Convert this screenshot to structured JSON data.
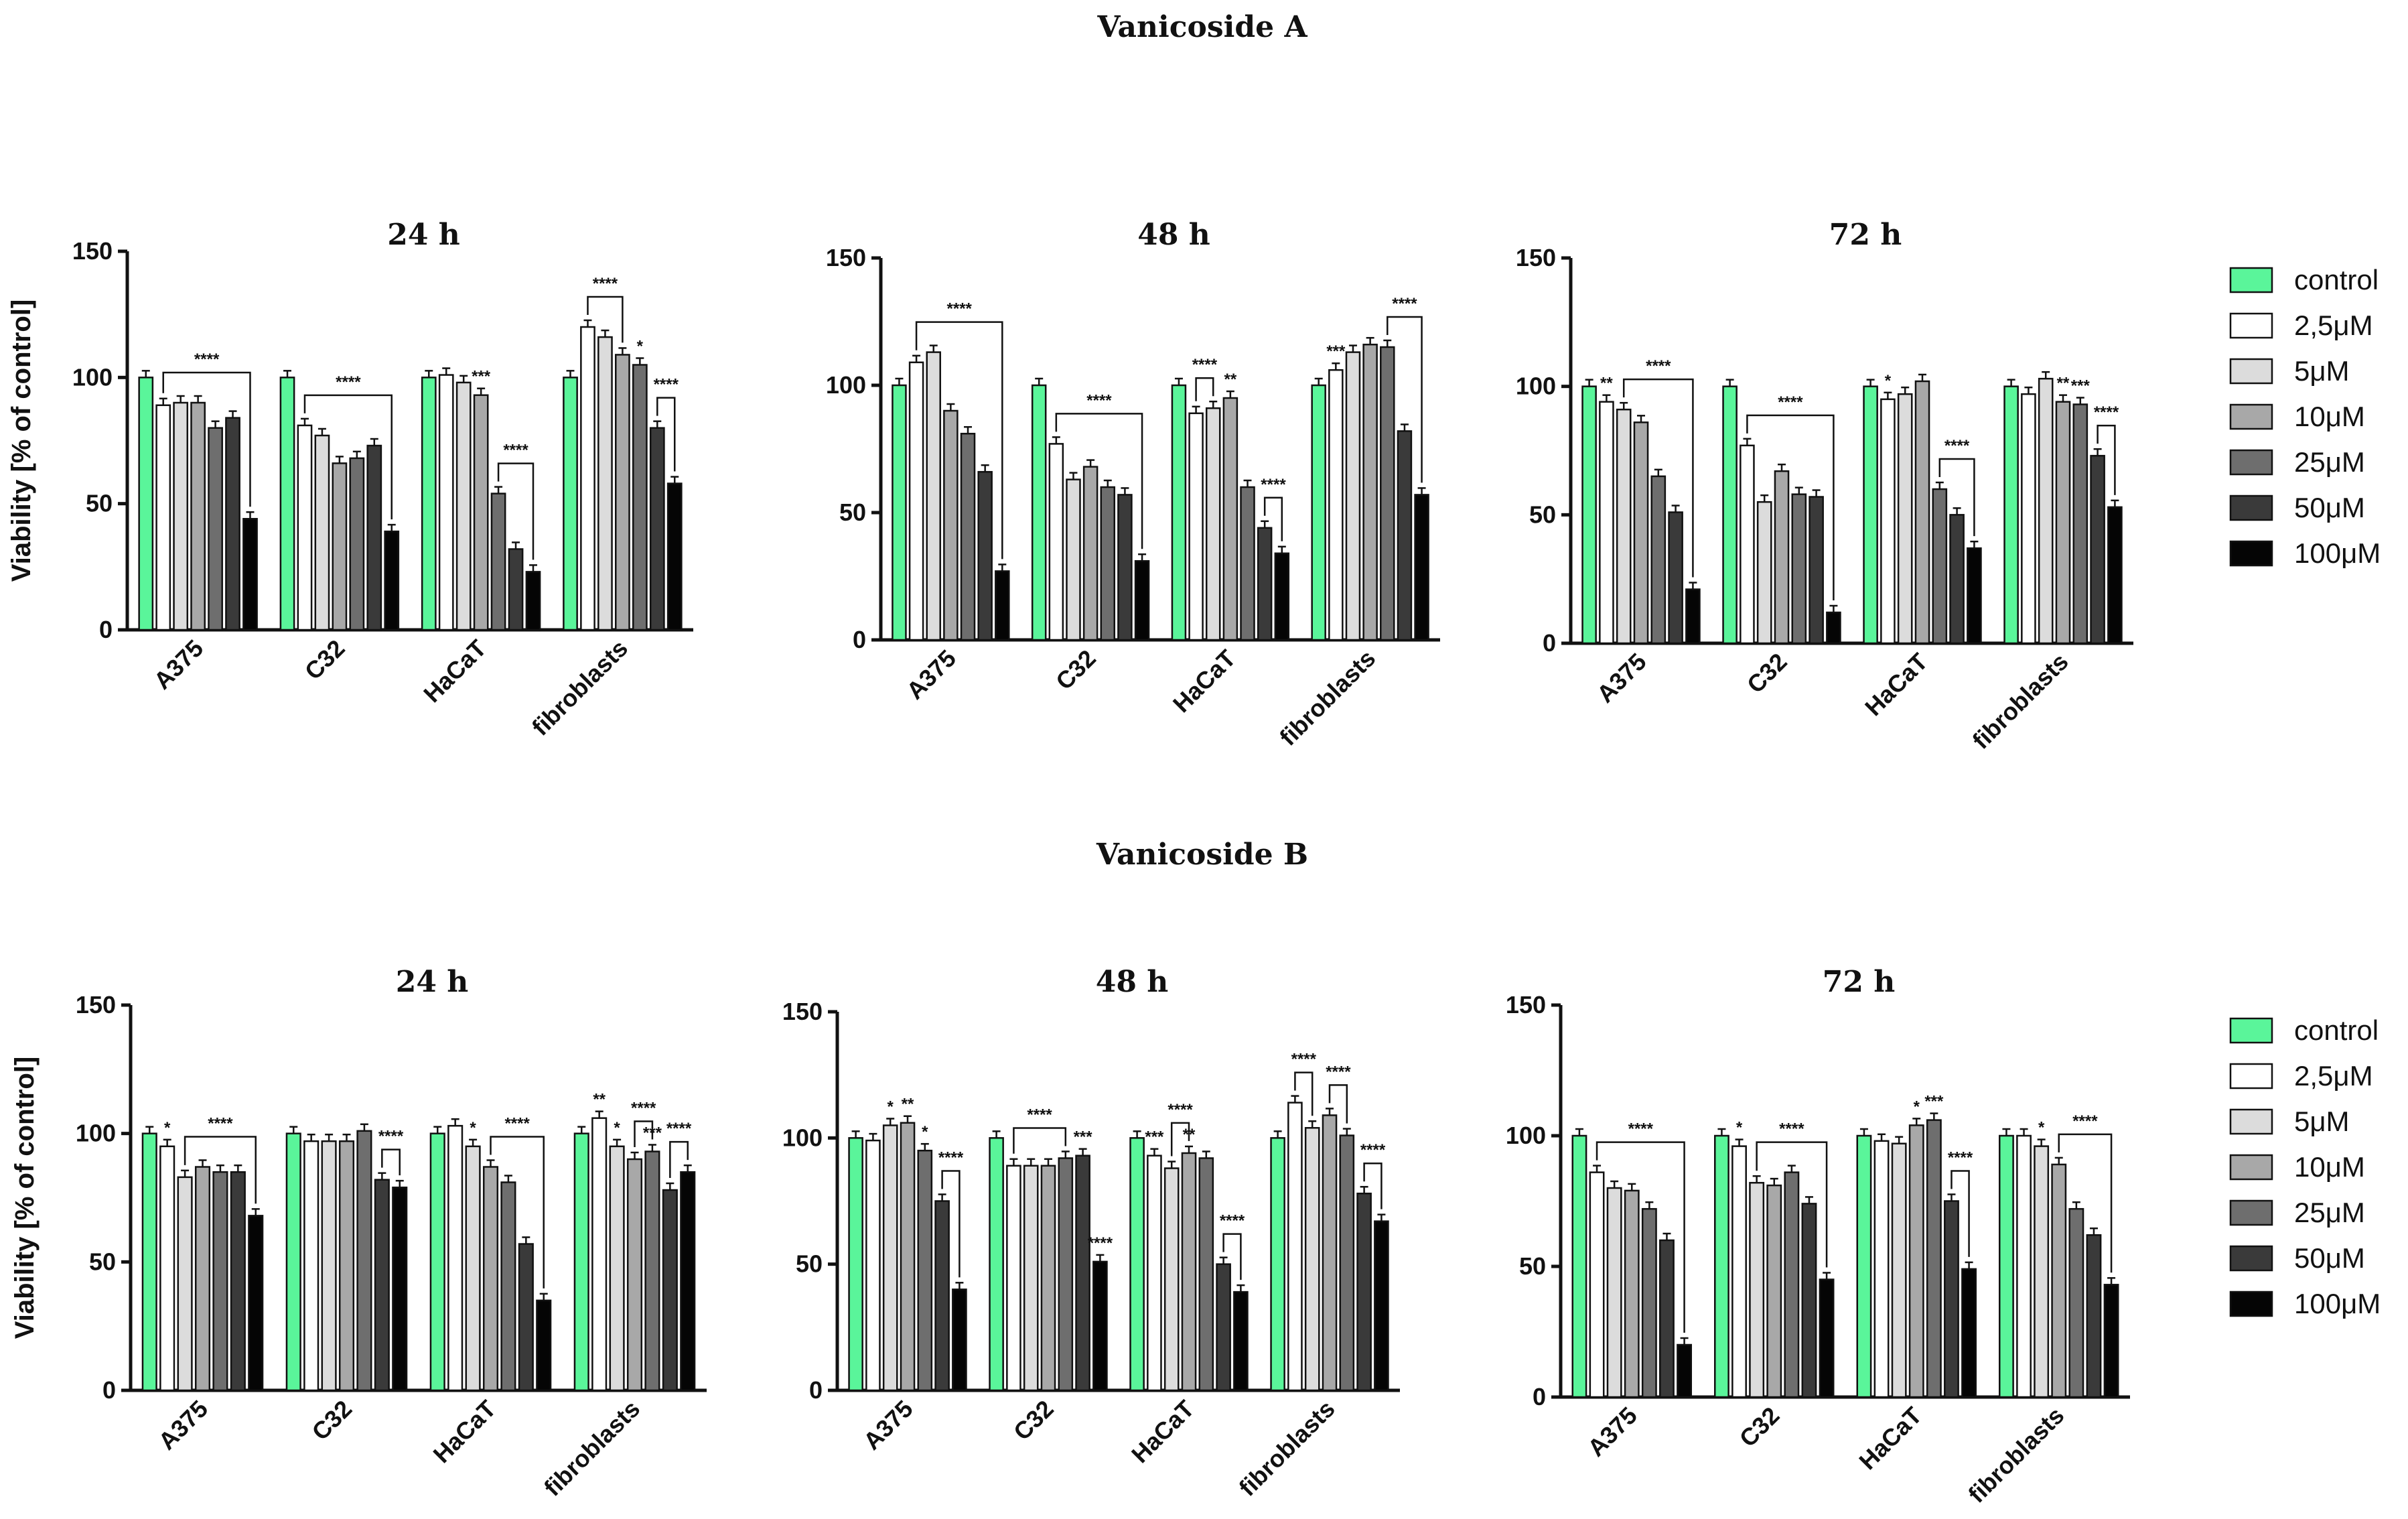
{
  "figure": {
    "section_titles": [
      "Vanicoside A",
      "Vanicoside B"
    ],
    "legend": {
      "labels": [
        "control",
        "2,5μM",
        "5μM",
        "10μM",
        "25μM",
        "50μM",
        "100μM"
      ],
      "colors": [
        "#5af59a",
        "#ffffff",
        "#dcdcdc",
        "#a8a8a8",
        "#6e6e6e",
        "#3a3a3a",
        "#050505"
      ]
    }
  },
  "chart_data": [
    {
      "type": "bar",
      "section": "Vanicoside A",
      "title": "24 h",
      "ylabel": "Viability [% of control]",
      "ylim": [
        0,
        150
      ],
      "yticks": [
        0,
        50,
        100,
        150
      ],
      "categories": [
        "A375",
        "C32",
        "HaCaT",
        "fibroblasts"
      ],
      "series": [
        {
          "name": "control",
          "values": [
            100,
            100,
            100,
            100
          ]
        },
        {
          "name": "2,5μM",
          "values": [
            89,
            81,
            101,
            120
          ]
        },
        {
          "name": "5μM",
          "values": [
            90,
            77,
            98,
            116
          ]
        },
        {
          "name": "10μM",
          "values": [
            90,
            66,
            93,
            109
          ]
        },
        {
          "name": "25μM",
          "values": [
            80,
            68,
            54,
            105
          ]
        },
        {
          "name": "50μM",
          "values": [
            84,
            73,
            32,
            80
          ]
        },
        {
          "name": "100μM",
          "values": [
            44,
            39,
            23,
            58
          ]
        }
      ],
      "annotations": [
        {
          "cat": 0,
          "type": "bracket",
          "from": 1,
          "to": 6,
          "label": "****"
        },
        {
          "cat": 1,
          "type": "bracket",
          "from": 1,
          "to": 6,
          "label": "****"
        },
        {
          "cat": 2,
          "type": "star",
          "at": 3,
          "label": "***"
        },
        {
          "cat": 2,
          "type": "bracket",
          "from": 4,
          "to": 6,
          "label": "****"
        },
        {
          "cat": 3,
          "type": "bracket",
          "from": 1,
          "to": 3,
          "label": "****"
        },
        {
          "cat": 3,
          "type": "star",
          "at": 4,
          "label": "*"
        },
        {
          "cat": 3,
          "type": "bracket",
          "from": 5,
          "to": 6,
          "label": "****"
        }
      ]
    },
    {
      "type": "bar",
      "section": "Vanicoside A",
      "title": "48 h",
      "ylim": [
        0,
        150
      ],
      "yticks": [
        0,
        50,
        100,
        150
      ],
      "categories": [
        "A375",
        "C32",
        "HaCaT",
        "fibroblasts"
      ],
      "series": [
        {
          "name": "control",
          "values": [
            100,
            100,
            100,
            100
          ]
        },
        {
          "name": "2,5μM",
          "values": [
            109,
            77,
            89,
            106
          ]
        },
        {
          "name": "5μM",
          "values": [
            113,
            63,
            91,
            113
          ]
        },
        {
          "name": "10μM",
          "values": [
            90,
            68,
            95,
            116
          ]
        },
        {
          "name": "25μM",
          "values": [
            81,
            60,
            60,
            115
          ]
        },
        {
          "name": "50μM",
          "values": [
            66,
            57,
            44,
            82
          ]
        },
        {
          "name": "100μM",
          "values": [
            27,
            31,
            34,
            57
          ]
        }
      ],
      "annotations": [
        {
          "cat": 0,
          "type": "bracket",
          "from": 1,
          "to": 6,
          "label": "****"
        },
        {
          "cat": 1,
          "type": "bracket",
          "from": 1,
          "to": 6,
          "label": "****"
        },
        {
          "cat": 2,
          "type": "bracket",
          "from": 1,
          "to": 2,
          "label": "****"
        },
        {
          "cat": 2,
          "type": "star",
          "at": 3,
          "label": "**"
        },
        {
          "cat": 2,
          "type": "bracket",
          "from": 5,
          "to": 6,
          "label": "****"
        },
        {
          "cat": 3,
          "type": "star",
          "at": 1,
          "label": "***"
        },
        {
          "cat": 3,
          "type": "bracket",
          "from": 4,
          "to": 6,
          "label": "****"
        }
      ]
    },
    {
      "type": "bar",
      "section": "Vanicoside A",
      "title": "72 h",
      "ylim": [
        0,
        150
      ],
      "yticks": [
        0,
        50,
        100,
        150
      ],
      "categories": [
        "A375",
        "C32",
        "HaCaT",
        "fibroblasts"
      ],
      "series": [
        {
          "name": "control",
          "values": [
            100,
            100,
            100,
            100
          ]
        },
        {
          "name": "2,5μM",
          "values": [
            94,
            77,
            95,
            97
          ]
        },
        {
          "name": "5μM",
          "values": [
            91,
            55,
            97,
            103
          ]
        },
        {
          "name": "10μM",
          "values": [
            86,
            67,
            102,
            94
          ]
        },
        {
          "name": "25μM",
          "values": [
            65,
            58,
            60,
            93
          ]
        },
        {
          "name": "50μM",
          "values": [
            51,
            57,
            50,
            73
          ]
        },
        {
          "name": "100μM",
          "values": [
            21,
            12,
            37,
            53
          ]
        }
      ],
      "annotations": [
        {
          "cat": 0,
          "type": "star",
          "at": 1,
          "label": "**"
        },
        {
          "cat": 0,
          "type": "bracket",
          "from": 2,
          "to": 6,
          "label": "****"
        },
        {
          "cat": 1,
          "type": "bracket",
          "from": 1,
          "to": 6,
          "label": "****"
        },
        {
          "cat": 2,
          "type": "star",
          "at": 1,
          "label": "*"
        },
        {
          "cat": 2,
          "type": "bracket",
          "from": 4,
          "to": 6,
          "label": "****"
        },
        {
          "cat": 3,
          "type": "star",
          "at": 3,
          "label": "**"
        },
        {
          "cat": 3,
          "type": "star",
          "at": 4,
          "label": "***"
        },
        {
          "cat": 3,
          "type": "bracket",
          "from": 5,
          "to": 6,
          "label": "****"
        }
      ]
    },
    {
      "type": "bar",
      "section": "Vanicoside B",
      "title": "24 h",
      "ylabel": "Viability [% of control]",
      "ylim": [
        0,
        150
      ],
      "yticks": [
        0,
        50,
        100,
        150
      ],
      "categories": [
        "A375",
        "C32",
        "HaCaT",
        "fibroblasts"
      ],
      "series": [
        {
          "name": "control",
          "values": [
            100,
            100,
            100,
            100
          ]
        },
        {
          "name": "2,5μM",
          "values": [
            95,
            97,
            103,
            106
          ]
        },
        {
          "name": "5μM",
          "values": [
            83,
            97,
            95,
            95
          ]
        },
        {
          "name": "10μM",
          "values": [
            87,
            97,
            87,
            90
          ]
        },
        {
          "name": "25μM",
          "values": [
            85,
            101,
            81,
            93
          ]
        },
        {
          "name": "50μM",
          "values": [
            85,
            82,
            57,
            78
          ]
        },
        {
          "name": "100μM",
          "values": [
            68,
            79,
            35,
            85
          ]
        }
      ],
      "annotations": [
        {
          "cat": 0,
          "type": "star",
          "at": 1,
          "label": "*"
        },
        {
          "cat": 0,
          "type": "bracket",
          "from": 2,
          "to": 6,
          "label": "****"
        },
        {
          "cat": 1,
          "type": "bracket",
          "from": 5,
          "to": 6,
          "label": "****"
        },
        {
          "cat": 2,
          "type": "star",
          "at": 2,
          "label": "*"
        },
        {
          "cat": 2,
          "type": "bracket",
          "from": 3,
          "to": 6,
          "label": "****"
        },
        {
          "cat": 3,
          "type": "star",
          "at": 1,
          "label": "**"
        },
        {
          "cat": 3,
          "type": "star",
          "at": 2,
          "label": "*"
        },
        {
          "cat": 3,
          "type": "bracket",
          "from": 3,
          "to": 4,
          "label": "****"
        },
        {
          "cat": 3,
          "type": "star",
          "at": 4,
          "label": "***"
        },
        {
          "cat": 3,
          "type": "bracket",
          "from": 5,
          "to": 6,
          "label": "****"
        }
      ]
    },
    {
      "type": "bar",
      "section": "Vanicoside B",
      "title": "48 h",
      "ylim": [
        0,
        150
      ],
      "yticks": [
        0,
        50,
        100,
        150
      ],
      "categories": [
        "A375",
        "C32",
        "HaCaT",
        "fibroblasts"
      ],
      "series": [
        {
          "name": "control",
          "values": [
            100,
            100,
            100,
            100
          ]
        },
        {
          "name": "2,5μM",
          "values": [
            99,
            89,
            93,
            114
          ]
        },
        {
          "name": "5μM",
          "values": [
            105,
            89,
            88,
            104
          ]
        },
        {
          "name": "10μM",
          "values": [
            106,
            89,
            94,
            109
          ]
        },
        {
          "name": "25μM",
          "values": [
            95,
            92,
            92,
            101
          ]
        },
        {
          "name": "50μM",
          "values": [
            75,
            93,
            50,
            78
          ]
        },
        {
          "name": "100μM",
          "values": [
            40,
            51,
            39,
            67
          ]
        }
      ],
      "annotations": [
        {
          "cat": 0,
          "type": "star",
          "at": 2,
          "label": "*"
        },
        {
          "cat": 0,
          "type": "star",
          "at": 3,
          "label": "**"
        },
        {
          "cat": 0,
          "type": "star",
          "at": 4,
          "label": "*"
        },
        {
          "cat": 0,
          "type": "bracket",
          "from": 5,
          "to": 6,
          "label": "****"
        },
        {
          "cat": 1,
          "type": "bracket",
          "from": 1,
          "to": 4,
          "label": "****"
        },
        {
          "cat": 1,
          "type": "star",
          "at": 5,
          "label": "***"
        },
        {
          "cat": 1,
          "type": "star",
          "at": 6,
          "label": "****"
        },
        {
          "cat": 2,
          "type": "star",
          "at": 1,
          "label": "***"
        },
        {
          "cat": 2,
          "type": "bracket",
          "from": 2,
          "to": 3,
          "label": "****"
        },
        {
          "cat": 2,
          "type": "star",
          "at": 3,
          "label": "**"
        },
        {
          "cat": 2,
          "type": "bracket",
          "from": 5,
          "to": 6,
          "label": "****"
        },
        {
          "cat": 3,
          "type": "bracket",
          "from": 1,
          "to": 2,
          "label": "****"
        },
        {
          "cat": 3,
          "type": "bracket",
          "from": 3,
          "to": 4,
          "label": "****"
        },
        {
          "cat": 3,
          "type": "bracket",
          "from": 5,
          "to": 6,
          "label": "****"
        }
      ]
    },
    {
      "type": "bar",
      "section": "Vanicoside B",
      "title": "72 h",
      "ylim": [
        0,
        150
      ],
      "yticks": [
        0,
        50,
        100,
        150
      ],
      "categories": [
        "A375",
        "C32",
        "HaCaT",
        "fibroblasts"
      ],
      "series": [
        {
          "name": "control",
          "values": [
            100,
            100,
            100,
            100
          ]
        },
        {
          "name": "2,5μM",
          "values": [
            86,
            96,
            98,
            100
          ]
        },
        {
          "name": "5μM",
          "values": [
            80,
            82,
            97,
            96
          ]
        },
        {
          "name": "10μM",
          "values": [
            79,
            81,
            104,
            89
          ]
        },
        {
          "name": "25μM",
          "values": [
            72,
            86,
            106,
            72
          ]
        },
        {
          "name": "50μM",
          "values": [
            60,
            74,
            75,
            62
          ]
        },
        {
          "name": "100μM",
          "values": [
            20,
            45,
            49,
            43
          ]
        }
      ],
      "annotations": [
        {
          "cat": 0,
          "type": "bracket",
          "from": 1,
          "to": 6,
          "label": "****"
        },
        {
          "cat": 1,
          "type": "star",
          "at": 1,
          "label": "*"
        },
        {
          "cat": 1,
          "type": "bracket",
          "from": 2,
          "to": 6,
          "label": "****"
        },
        {
          "cat": 2,
          "type": "star",
          "at": 3,
          "label": "*"
        },
        {
          "cat": 2,
          "type": "star",
          "at": 4,
          "label": "***"
        },
        {
          "cat": 2,
          "type": "bracket",
          "from": 5,
          "to": 6,
          "label": "****"
        },
        {
          "cat": 3,
          "type": "star",
          "at": 2,
          "label": "*"
        },
        {
          "cat": 3,
          "type": "bracket",
          "from": 3,
          "to": 6,
          "label": "****"
        }
      ]
    }
  ]
}
